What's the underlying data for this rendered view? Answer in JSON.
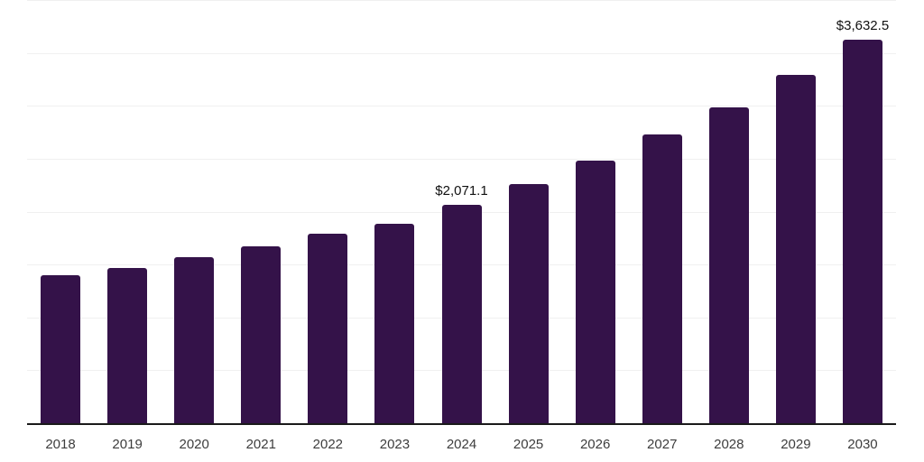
{
  "chart_data": {
    "type": "bar",
    "title": "",
    "xlabel": "",
    "ylabel": "",
    "categories": [
      "2018",
      "2019",
      "2020",
      "2021",
      "2022",
      "2023",
      "2024",
      "2025",
      "2026",
      "2027",
      "2028",
      "2029",
      "2030"
    ],
    "values": [
      1408,
      1478,
      1578,
      1684,
      1797,
      1892,
      2071.1,
      2267,
      2492,
      2736,
      2996,
      3301,
      3632.5
    ],
    "data_labels": [
      {
        "category": "2024",
        "text": "$2,071.1"
      },
      {
        "category": "2030",
        "text": "$3,632.5"
      }
    ],
    "ylim": [
      0,
      4000
    ],
    "gridline_step": 500,
    "grid": true,
    "y_tick_labels_visible": false,
    "legend_position": "none",
    "colors": {
      "bar": "#341249",
      "gridline": "#f0f0f0",
      "axis_line": "#1a1a1a",
      "tick_label": "#3d3d3d",
      "data_label": "#111111",
      "background": "#ffffff"
    }
  }
}
